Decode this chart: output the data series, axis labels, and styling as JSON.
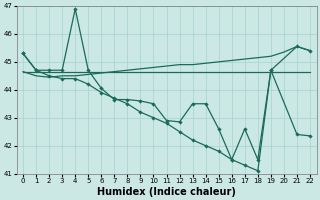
{
  "xlabel": "Humidex (Indice chaleur)",
  "bg_color": "#cce8e4",
  "grid_color": "#aad8d0",
  "line_color": "#1a6b5a",
  "ylim": [
    41,
    47
  ],
  "xlim": [
    -0.5,
    22.5
  ],
  "yticks": [
    41,
    42,
    43,
    44,
    45,
    46,
    47
  ],
  "xticks": [
    0,
    1,
    2,
    3,
    4,
    5,
    6,
    7,
    8,
    9,
    10,
    11,
    12,
    13,
    14,
    15,
    16,
    17,
    18,
    19,
    20,
    21,
    22
  ],
  "line1_x": [
    0,
    1,
    2,
    3,
    4,
    5,
    6,
    7,
    8,
    9,
    10,
    11,
    12,
    13,
    14,
    15,
    16,
    17,
    18,
    19,
    21,
    22
  ],
  "line1_y": [
    45.3,
    44.7,
    44.7,
    44.7,
    46.9,
    44.7,
    44.05,
    43.65,
    43.65,
    43.6,
    43.5,
    42.9,
    42.85,
    43.5,
    43.5,
    42.6,
    41.5,
    42.6,
    41.5,
    44.7,
    42.4,
    42.35
  ],
  "line2_x": [
    0,
    1,
    2,
    3,
    4,
    5,
    6,
    7,
    8,
    9,
    10,
    11,
    12,
    13,
    14,
    15,
    16,
    17,
    18,
    19,
    20,
    21,
    22
  ],
  "line2_y": [
    44.65,
    44.65,
    44.65,
    44.65,
    44.65,
    44.65,
    44.65,
    44.65,
    44.65,
    44.65,
    44.65,
    44.65,
    44.65,
    44.65,
    44.65,
    44.65,
    44.65,
    44.65,
    44.65,
    44.65,
    44.65,
    44.65,
    44.65
  ],
  "line3_x": [
    0,
    1,
    2,
    3,
    4,
    5,
    6,
    7,
    8,
    9,
    10,
    11,
    12,
    13,
    14,
    15,
    16,
    17,
    18,
    19,
    20,
    21,
    22
  ],
  "line3_y": [
    44.65,
    44.5,
    44.45,
    44.5,
    44.5,
    44.55,
    44.6,
    44.65,
    44.7,
    44.75,
    44.8,
    44.85,
    44.9,
    44.9,
    44.95,
    45.0,
    45.05,
    45.1,
    45.15,
    45.2,
    45.35,
    45.55,
    45.4
  ],
  "line4_x": [
    0,
    1,
    2,
    3,
    4,
    5,
    6,
    7,
    8,
    9,
    10,
    11,
    12,
    13,
    14,
    15,
    16,
    17,
    18,
    19,
    21,
    22
  ],
  "line4_y": [
    45.3,
    44.7,
    44.5,
    44.4,
    44.4,
    44.2,
    43.9,
    43.7,
    43.5,
    43.2,
    43.0,
    42.8,
    42.5,
    42.2,
    42.0,
    41.8,
    41.5,
    41.3,
    41.1,
    44.7,
    45.55,
    45.4
  ]
}
